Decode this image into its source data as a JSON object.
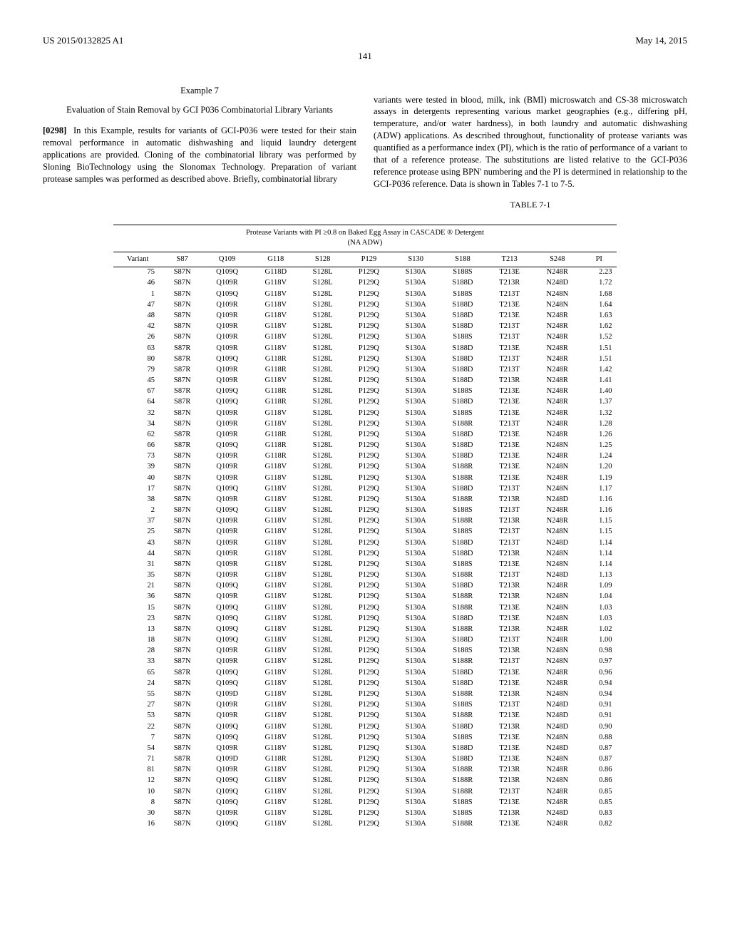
{
  "header": {
    "pub_number": "US 2015/0132825 A1",
    "pub_date": "May 14, 2015",
    "page_number": "141"
  },
  "left_column": {
    "example_label": "Example 7",
    "example_title": "Evaluation of Stain Removal by GCI P036 Combinatorial Library Variants",
    "para_number": "[0298]",
    "para_text": "In this Example, results for variants of GCI-P036 were tested for their stain removal performance in automatic dishwashing and liquid laundry detergent applications are provided. Cloning of the combinatorial library was performed by Sloning BioTechnology using the Slonomax Technology. Preparation of variant protease samples was performed as described above. Briefly, combinatorial library"
  },
  "right_column": {
    "para_text": "variants were tested in blood, milk, ink (BMI) microswatch and CS-38 microswatch assays in detergents representing various market geographies (e.g., differing pH, temperature, and/or water hardness), in both laundry and automatic dishwashing (ADW) applications. As described throughout, functionality of protease variants was quantified as a performance index (PI), which is the ratio of performance of a variant to that of a reference protease. The substitutions are listed relative to the GCI-P036 reference protease using BPN' numbering and the PI is determined in relationship to the GCI-P036 reference. Data is shown in Tables 7-1 to 7-5."
  },
  "table": {
    "label": "TABLE 7-1",
    "caption_line1": "Protease Variants with PI ≥0.8 on Baked Egg Assay in CASCADE ® Detergent",
    "caption_line2": "(NA ADW)",
    "columns": [
      "Variant",
      "S87",
      "Q109",
      "G118",
      "S128",
      "P129",
      "S130",
      "S188",
      "T213",
      "S248",
      "PI"
    ],
    "rows": [
      [
        "75",
        "S87N",
        "Q109Q",
        "G118D",
        "S128L",
        "P129Q",
        "S130A",
        "S188S",
        "T213E",
        "N248R",
        "2.23"
      ],
      [
        "46",
        "S87N",
        "Q109R",
        "G118V",
        "S128L",
        "P129Q",
        "S130A",
        "S188D",
        "T213R",
        "N248D",
        "1.72"
      ],
      [
        "1",
        "S87N",
        "Q109Q",
        "G118V",
        "S128L",
        "P129Q",
        "S130A",
        "S188S",
        "T213T",
        "N248N",
        "1.68"
      ],
      [
        "47",
        "S87N",
        "Q109R",
        "G118V",
        "S128L",
        "P129Q",
        "S130A",
        "S188D",
        "T213E",
        "N248N",
        "1.64"
      ],
      [
        "48",
        "S87N",
        "Q109R",
        "G118V",
        "S128L",
        "P129Q",
        "S130A",
        "S188D",
        "T213E",
        "N248R",
        "1.63"
      ],
      [
        "42",
        "S87N",
        "Q109R",
        "G118V",
        "S128L",
        "P129Q",
        "S130A",
        "S188D",
        "T213T",
        "N248R",
        "1.62"
      ],
      [
        "26",
        "S87N",
        "Q109R",
        "G118V",
        "S128L",
        "P129Q",
        "S130A",
        "S188S",
        "T213T",
        "N248R",
        "1.52"
      ],
      [
        "63",
        "S87R",
        "Q109R",
        "G118V",
        "S128L",
        "P129Q",
        "S130A",
        "S188D",
        "T213E",
        "N248R",
        "1.51"
      ],
      [
        "80",
        "S87R",
        "Q109Q",
        "G118R",
        "S128L",
        "P129Q",
        "S130A",
        "S188D",
        "T213T",
        "N248R",
        "1.51"
      ],
      [
        "79",
        "S87R",
        "Q109R",
        "G118R",
        "S128L",
        "P129Q",
        "S130A",
        "S188D",
        "T213T",
        "N248R",
        "1.42"
      ],
      [
        "45",
        "S87N",
        "Q109R",
        "G118V",
        "S128L",
        "P129Q",
        "S130A",
        "S188D",
        "T213R",
        "N248R",
        "1.41"
      ],
      [
        "67",
        "S87R",
        "Q109Q",
        "G118R",
        "S128L",
        "P129Q",
        "S130A",
        "S188S",
        "T213E",
        "N248R",
        "1.40"
      ],
      [
        "64",
        "S87R",
        "Q109Q",
        "G118R",
        "S128L",
        "P129Q",
        "S130A",
        "S188D",
        "T213E",
        "N248R",
        "1.37"
      ],
      [
        "32",
        "S87N",
        "Q109R",
        "G118V",
        "S128L",
        "P129Q",
        "S130A",
        "S188S",
        "T213E",
        "N248R",
        "1.32"
      ],
      [
        "34",
        "S87N",
        "Q109R",
        "G118V",
        "S128L",
        "P129Q",
        "S130A",
        "S188R",
        "T213T",
        "N248R",
        "1.28"
      ],
      [
        "62",
        "S87R",
        "Q109R",
        "G118R",
        "S128L",
        "P129Q",
        "S130A",
        "S188D",
        "T213E",
        "N248R",
        "1.26"
      ],
      [
        "66",
        "S87R",
        "Q109Q",
        "G118R",
        "S128L",
        "P129Q",
        "S130A",
        "S188D",
        "T213E",
        "N248N",
        "1.25"
      ],
      [
        "73",
        "S87N",
        "Q109R",
        "G118R",
        "S128L",
        "P129Q",
        "S130A",
        "S188D",
        "T213E",
        "N248R",
        "1.24"
      ],
      [
        "39",
        "S87N",
        "Q109R",
        "G118V",
        "S128L",
        "P129Q",
        "S130A",
        "S188R",
        "T213E",
        "N248N",
        "1.20"
      ],
      [
        "40",
        "S87N",
        "Q109R",
        "G118V",
        "S128L",
        "P129Q",
        "S130A",
        "S188R",
        "T213E",
        "N248R",
        "1.19"
      ],
      [
        "17",
        "S87N",
        "Q109Q",
        "G118V",
        "S128L",
        "P129Q",
        "S130A",
        "S188D",
        "T213T",
        "N248N",
        "1.17"
      ],
      [
        "38",
        "S87N",
        "Q109R",
        "G118V",
        "S128L",
        "P129Q",
        "S130A",
        "S188R",
        "T213R",
        "N248D",
        "1.16"
      ],
      [
        "2",
        "S87N",
        "Q109Q",
        "G118V",
        "S128L",
        "P129Q",
        "S130A",
        "S188S",
        "T213T",
        "N248R",
        "1.16"
      ],
      [
        "37",
        "S87N",
        "Q109R",
        "G118V",
        "S128L",
        "P129Q",
        "S130A",
        "S188R",
        "T213R",
        "N248R",
        "1.15"
      ],
      [
        "25",
        "S87N",
        "Q109R",
        "G118V",
        "S128L",
        "P129Q",
        "S130A",
        "S188S",
        "T213T",
        "N248N",
        "1.15"
      ],
      [
        "43",
        "S87N",
        "Q109R",
        "G118V",
        "S128L",
        "P129Q",
        "S130A",
        "S188D",
        "T213T",
        "N248D",
        "1.14"
      ],
      [
        "44",
        "S87N",
        "Q109R",
        "G118V",
        "S128L",
        "P129Q",
        "S130A",
        "S188D",
        "T213R",
        "N248N",
        "1.14"
      ],
      [
        "31",
        "S87N",
        "Q109R",
        "G118V",
        "S128L",
        "P129Q",
        "S130A",
        "S188S",
        "T213E",
        "N248N",
        "1.14"
      ],
      [
        "35",
        "S87N",
        "Q109R",
        "G118V",
        "S128L",
        "P129Q",
        "S130A",
        "S188R",
        "T213T",
        "N248D",
        "1.13"
      ],
      [
        "21",
        "S87N",
        "Q109Q",
        "G118V",
        "S128L",
        "P129Q",
        "S130A",
        "S188D",
        "T213R",
        "N248R",
        "1.09"
      ],
      [
        "36",
        "S87N",
        "Q109R",
        "G118V",
        "S128L",
        "P129Q",
        "S130A",
        "S188R",
        "T213R",
        "N248N",
        "1.04"
      ],
      [
        "15",
        "S87N",
        "Q109Q",
        "G118V",
        "S128L",
        "P129Q",
        "S130A",
        "S188R",
        "T213E",
        "N248N",
        "1.03"
      ],
      [
        "23",
        "S87N",
        "Q109Q",
        "G118V",
        "S128L",
        "P129Q",
        "S130A",
        "S188D",
        "T213E",
        "N248N",
        "1.03"
      ],
      [
        "13",
        "S87N",
        "Q109Q",
        "G118V",
        "S128L",
        "P129Q",
        "S130A",
        "S188R",
        "T213R",
        "N248R",
        "1.02"
      ],
      [
        "18",
        "S87N",
        "Q109Q",
        "G118V",
        "S128L",
        "P129Q",
        "S130A",
        "S188D",
        "T213T",
        "N248R",
        "1.00"
      ],
      [
        "28",
        "S87N",
        "Q109R",
        "G118V",
        "S128L",
        "P129Q",
        "S130A",
        "S188S",
        "T213R",
        "N248N",
        "0.98"
      ],
      [
        "33",
        "S87N",
        "Q109R",
        "G118V",
        "S128L",
        "P129Q",
        "S130A",
        "S188R",
        "T213T",
        "N248N",
        "0.97"
      ],
      [
        "65",
        "S87R",
        "Q109Q",
        "G118V",
        "S128L",
        "P129Q",
        "S130A",
        "S188D",
        "T213E",
        "N248R",
        "0.96"
      ],
      [
        "24",
        "S87N",
        "Q109Q",
        "G118V",
        "S128L",
        "P129Q",
        "S130A",
        "S188D",
        "T213E",
        "N248R",
        "0.94"
      ],
      [
        "55",
        "S87N",
        "Q109D",
        "G118V",
        "S128L",
        "P129Q",
        "S130A",
        "S188R",
        "T213R",
        "N248N",
        "0.94"
      ],
      [
        "27",
        "S87N",
        "Q109R",
        "G118V",
        "S128L",
        "P129Q",
        "S130A",
        "S188S",
        "T213T",
        "N248D",
        "0.91"
      ],
      [
        "53",
        "S87N",
        "Q109R",
        "G118V",
        "S128L",
        "P129Q",
        "S130A",
        "S188R",
        "T213E",
        "N248D",
        "0.91"
      ],
      [
        "22",
        "S87N",
        "Q109Q",
        "G118V",
        "S128L",
        "P129Q",
        "S130A",
        "S188D",
        "T213R",
        "N248D",
        "0.90"
      ],
      [
        "7",
        "S87N",
        "Q109Q",
        "G118V",
        "S128L",
        "P129Q",
        "S130A",
        "S188S",
        "T213E",
        "N248N",
        "0.88"
      ],
      [
        "54",
        "S87N",
        "Q109R",
        "G118V",
        "S128L",
        "P129Q",
        "S130A",
        "S188D",
        "T213E",
        "N248D",
        "0.87"
      ],
      [
        "71",
        "S87R",
        "Q109D",
        "G118R",
        "S128L",
        "P129Q",
        "S130A",
        "S188D",
        "T213E",
        "N248N",
        "0.87"
      ],
      [
        "81",
        "S87N",
        "Q109R",
        "G118V",
        "S128L",
        "P129Q",
        "S130A",
        "S188R",
        "T213R",
        "N248R",
        "0.86"
      ],
      [
        "12",
        "S87N",
        "Q109Q",
        "G118V",
        "S128L",
        "P129Q",
        "S130A",
        "S188R",
        "T213R",
        "N248N",
        "0.86"
      ],
      [
        "10",
        "S87N",
        "Q109Q",
        "G118V",
        "S128L",
        "P129Q",
        "S130A",
        "S188R",
        "T213T",
        "N248R",
        "0.85"
      ],
      [
        "8",
        "S87N",
        "Q109Q",
        "G118V",
        "S128L",
        "P129Q",
        "S130A",
        "S188S",
        "T213E",
        "N248R",
        "0.85"
      ],
      [
        "30",
        "S87N",
        "Q109R",
        "G118V",
        "S128L",
        "P129Q",
        "S130A",
        "S188S",
        "T213R",
        "N248D",
        "0.83"
      ],
      [
        "16",
        "S87N",
        "Q109Q",
        "G118V",
        "S128L",
        "P129Q",
        "S130A",
        "S188R",
        "T213E",
        "N248R",
        "0.82"
      ]
    ]
  }
}
